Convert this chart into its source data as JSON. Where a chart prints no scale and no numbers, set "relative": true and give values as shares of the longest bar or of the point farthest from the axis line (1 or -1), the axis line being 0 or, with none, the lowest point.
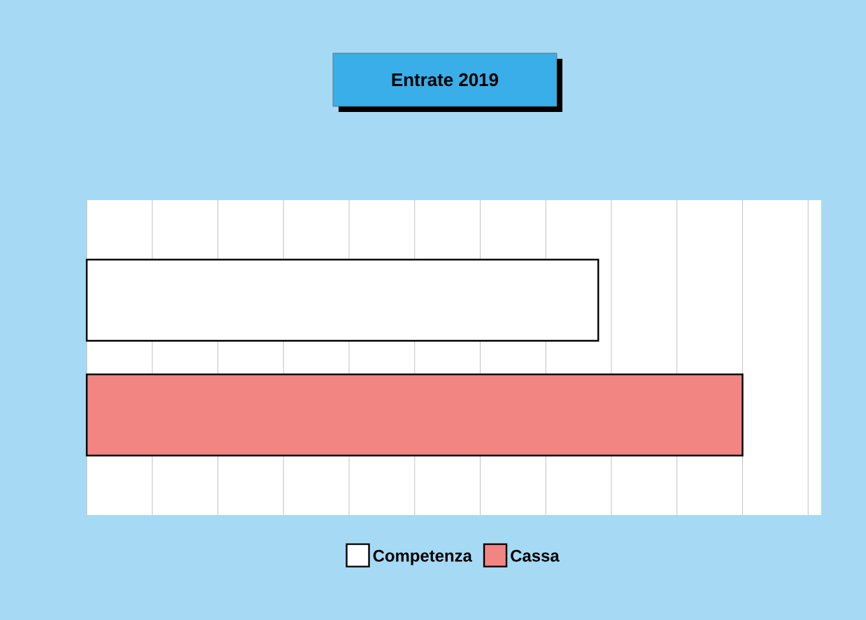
{
  "chart_data": {
    "type": "bar",
    "title": "Entrate 2019",
    "orientation": "horizontal",
    "relative": true,
    "categories": [
      null
    ],
    "series": [
      {
        "name": "Competenza",
        "color": "#ffffff",
        "values": [
          0.78
        ]
      },
      {
        "name": "Cassa",
        "color": "#f28482",
        "values": [
          1
        ]
      }
    ],
    "grid": "x",
    "legend": "bottom"
  }
}
